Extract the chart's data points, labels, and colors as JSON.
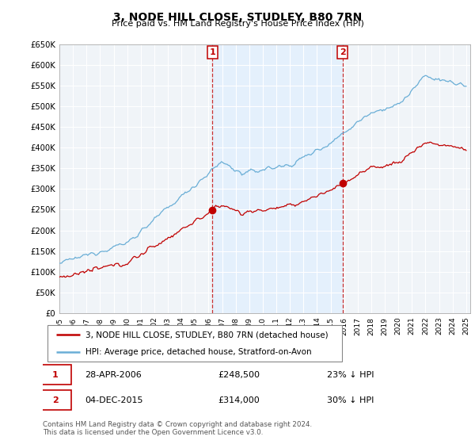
{
  "title": "3, NODE HILL CLOSE, STUDLEY, B80 7RN",
  "subtitle": "Price paid vs. HM Land Registry's House Price Index (HPI)",
  "legend_line1": "3, NODE HILL CLOSE, STUDLEY, B80 7RN (detached house)",
  "legend_line2": "HPI: Average price, detached house, Stratford-on-Avon",
  "footnote": "Contains HM Land Registry data © Crown copyright and database right 2024.\nThis data is licensed under the Open Government Licence v3.0.",
  "annotation1_date": "28-APR-2006",
  "annotation1_price": "£248,500",
  "annotation1_hpi": "23% ↓ HPI",
  "annotation2_date": "04-DEC-2015",
  "annotation2_price": "£314,000",
  "annotation2_hpi": "30% ↓ HPI",
  "hpi_color": "#6aaed6",
  "price_color": "#c00000",
  "annotation_color": "#c00000",
  "shade_color": "#ddeeff",
  "ylim": [
    0,
    650000
  ],
  "yticks": [
    0,
    50000,
    100000,
    150000,
    200000,
    250000,
    300000,
    350000,
    400000,
    450000,
    500000,
    550000,
    600000,
    650000
  ],
  "background_color": "#ffffff",
  "grid_color": "#cccccc",
  "sale1_year": 2006.32,
  "sale1_price": 248500,
  "sale2_year": 2015.92,
  "sale2_price": 314000
}
